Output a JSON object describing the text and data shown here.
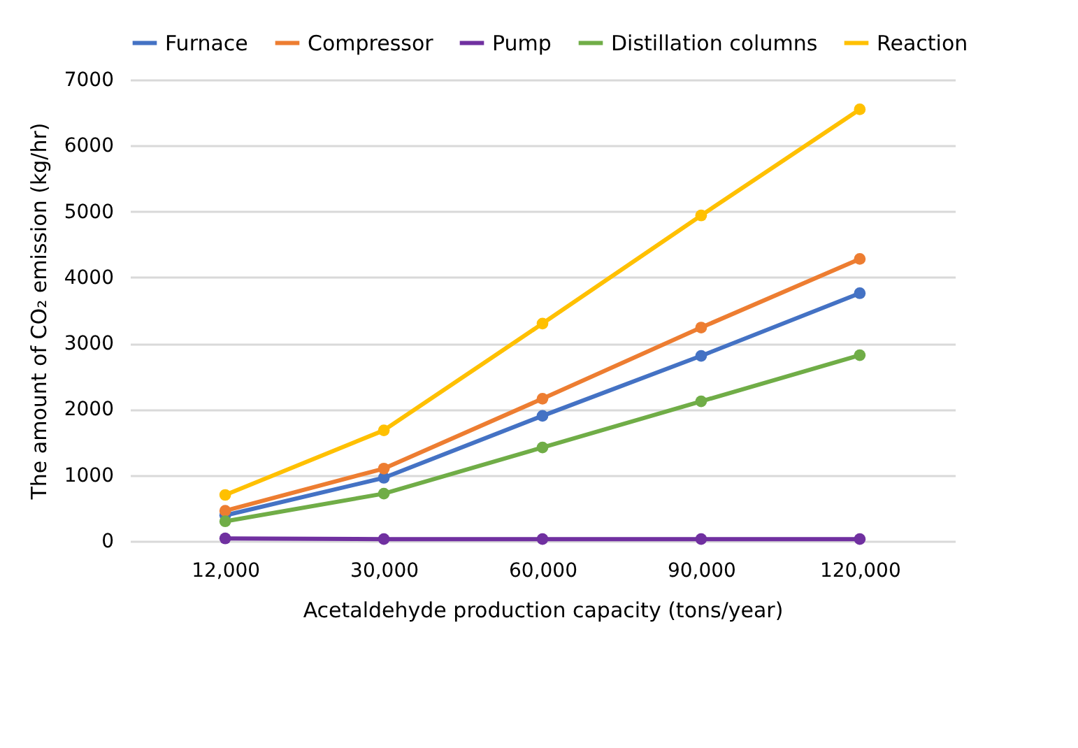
{
  "chart_data": {
    "type": "line",
    "xlabel": "Acetaldehyde production capacity (tons/year)",
    "ylabel": "The amount of CO₂ emission (kg/hr)",
    "categories": [
      "12,000",
      "30,000",
      "60,000",
      "90,000",
      "120,000"
    ],
    "series": [
      {
        "name": "Furnace",
        "color": "#4472c4",
        "values": [
          390,
          960,
          1900,
          2810,
          3760
        ]
      },
      {
        "name": "Compressor",
        "color": "#ed7d31",
        "values": [
          460,
          1100,
          2160,
          3240,
          4280
        ]
      },
      {
        "name": "Pump",
        "color": "#7030a0",
        "values": [
          40,
          30,
          30,
          30,
          30
        ]
      },
      {
        "name": "Distillation columns",
        "color": "#70ad47",
        "values": [
          300,
          720,
          1420,
          2120,
          2820
        ]
      },
      {
        "name": "Reaction",
        "color": "#ffc000",
        "values": [
          700,
          1680,
          3300,
          4940,
          6550
        ]
      }
    ],
    "ylim": [
      0,
      7000
    ],
    "yticks": [
      0,
      1000,
      2000,
      3000,
      4000,
      5000,
      6000,
      7000
    ],
    "grid": "y",
    "legend": "top",
    "marker": "circle",
    "line_style": "solid"
  }
}
